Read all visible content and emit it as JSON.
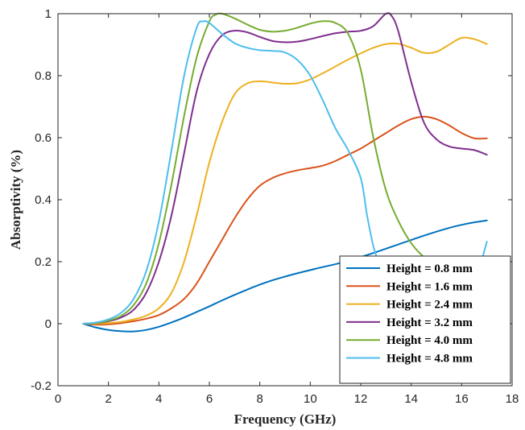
{
  "chart_data": {
    "type": "line",
    "title": "",
    "xlabel": "Frequency (GHz)",
    "ylabel": "Absorptivity (%)",
    "xlim": [
      0,
      18
    ],
    "ylim": [
      -0.2,
      1
    ],
    "xticks": [
      0,
      2,
      4,
      6,
      8,
      10,
      12,
      14,
      16,
      18
    ],
    "yticks": [
      -0.2,
      0,
      0.2,
      0.4,
      0.6,
      0.8,
      1
    ],
    "ytick_labels": [
      "-0.2",
      "0",
      "0.2",
      "0.4",
      "0.6",
      "0.8",
      "1"
    ],
    "grid": false,
    "legend_position": "bottom-right",
    "series": [
      {
        "name": "Height = 0.8 mm",
        "color": "#0072BD",
        "points": [
          [
            1,
            0
          ],
          [
            1.5,
            -0.012
          ],
          [
            2,
            -0.02
          ],
          [
            2.5,
            -0.024
          ],
          [
            3,
            -0.025
          ],
          [
            3.5,
            -0.02
          ],
          [
            4,
            -0.01
          ],
          [
            4.5,
            0.004
          ],
          [
            5,
            0.02
          ],
          [
            5.5,
            0.038
          ],
          [
            6,
            0.056
          ],
          [
            6.5,
            0.075
          ],
          [
            7,
            0.093
          ],
          [
            7.5,
            0.11
          ],
          [
            8,
            0.126
          ],
          [
            8.5,
            0.14
          ],
          [
            9,
            0.152
          ],
          [
            9.5,
            0.163
          ],
          [
            10,
            0.173
          ],
          [
            10.5,
            0.183
          ],
          [
            11,
            0.192
          ],
          [
            11.5,
            0.203
          ],
          [
            12,
            0.215
          ],
          [
            12.5,
            0.228
          ],
          [
            13,
            0.242
          ],
          [
            13.5,
            0.256
          ],
          [
            14,
            0.27
          ],
          [
            14.5,
            0.284
          ],
          [
            15,
            0.297
          ],
          [
            15.5,
            0.309
          ],
          [
            16,
            0.319
          ],
          [
            16.5,
            0.327
          ],
          [
            17,
            0.333
          ]
        ]
      },
      {
        "name": "Height = 1.6 mm",
        "color": "#D95319",
        "points": [
          [
            1,
            0
          ],
          [
            1.5,
            -0.003
          ],
          [
            2,
            -0.002
          ],
          [
            2.5,
            0.002
          ],
          [
            3,
            0.008
          ],
          [
            3.5,
            0.016
          ],
          [
            4,
            0.028
          ],
          [
            4.5,
            0.05
          ],
          [
            5,
            0.08
          ],
          [
            5.5,
            0.13
          ],
          [
            6,
            0.2
          ],
          [
            6.5,
            0.27
          ],
          [
            7,
            0.34
          ],
          [
            7.5,
            0.4
          ],
          [
            8,
            0.445
          ],
          [
            8.5,
            0.47
          ],
          [
            9,
            0.485
          ],
          [
            9.5,
            0.495
          ],
          [
            10,
            0.502
          ],
          [
            10.5,
            0.51
          ],
          [
            11,
            0.525
          ],
          [
            11.5,
            0.545
          ],
          [
            12,
            0.565
          ],
          [
            12.5,
            0.59
          ],
          [
            13,
            0.615
          ],
          [
            13.5,
            0.64
          ],
          [
            14,
            0.66
          ],
          [
            14.5,
            0.668
          ],
          [
            15,
            0.66
          ],
          [
            15.5,
            0.64
          ],
          [
            16,
            0.615
          ],
          [
            16.5,
            0.598
          ],
          [
            17,
            0.598
          ]
        ]
      },
      {
        "name": "Height = 2.4 mm",
        "color": "#EDB120",
        "points": [
          [
            1,
            0
          ],
          [
            1.5,
            0
          ],
          [
            2,
            0.002
          ],
          [
            2.5,
            0.006
          ],
          [
            3,
            0.014
          ],
          [
            3.5,
            0.026
          ],
          [
            4,
            0.05
          ],
          [
            4.5,
            0.1
          ],
          [
            5,
            0.2
          ],
          [
            5.5,
            0.35
          ],
          [
            6,
            0.52
          ],
          [
            6.5,
            0.65
          ],
          [
            7,
            0.74
          ],
          [
            7.5,
            0.775
          ],
          [
            8,
            0.782
          ],
          [
            8.5,
            0.778
          ],
          [
            9,
            0.774
          ],
          [
            9.5,
            0.776
          ],
          [
            10,
            0.788
          ],
          [
            10.5,
            0.808
          ],
          [
            11,
            0.83
          ],
          [
            11.5,
            0.852
          ],
          [
            12,
            0.872
          ],
          [
            12.5,
            0.89
          ],
          [
            13,
            0.902
          ],
          [
            13.5,
            0.903
          ],
          [
            14,
            0.89
          ],
          [
            14.5,
            0.874
          ],
          [
            15,
            0.877
          ],
          [
            15.5,
            0.9
          ],
          [
            16,
            0.922
          ],
          [
            16.5,
            0.918
          ],
          [
            17,
            0.902
          ]
        ]
      },
      {
        "name": "Height = 3.2 mm",
        "color": "#7E2F8E",
        "points": [
          [
            1,
            0
          ],
          [
            1.5,
            0.002
          ],
          [
            2,
            0.008
          ],
          [
            2.5,
            0.02
          ],
          [
            3,
            0.045
          ],
          [
            3.5,
            0.1
          ],
          [
            4,
            0.2
          ],
          [
            4.5,
            0.35
          ],
          [
            5,
            0.55
          ],
          [
            5.5,
            0.75
          ],
          [
            6,
            0.87
          ],
          [
            6.5,
            0.93
          ],
          [
            7,
            0.945
          ],
          [
            7.5,
            0.94
          ],
          [
            8,
            0.925
          ],
          [
            8.5,
            0.912
          ],
          [
            9,
            0.908
          ],
          [
            9.5,
            0.91
          ],
          [
            10,
            0.918
          ],
          [
            10.5,
            0.928
          ],
          [
            11,
            0.937
          ],
          [
            11.5,
            0.942
          ],
          [
            12,
            0.945
          ],
          [
            12.5,
            0.96
          ],
          [
            13,
            1.0
          ],
          [
            13.25,
            0.99
          ],
          [
            13.5,
            0.94
          ],
          [
            14,
            0.78
          ],
          [
            14.5,
            0.65
          ],
          [
            15,
            0.595
          ],
          [
            15.5,
            0.572
          ],
          [
            16,
            0.565
          ],
          [
            16.5,
            0.56
          ],
          [
            17,
            0.545
          ]
        ]
      },
      {
        "name": "Height = 4.0 mm",
        "color": "#77AC30",
        "points": [
          [
            1,
            0
          ],
          [
            1.5,
            0.002
          ],
          [
            2,
            0.01
          ],
          [
            2.5,
            0.025
          ],
          [
            3,
            0.06
          ],
          [
            3.5,
            0.13
          ],
          [
            4,
            0.26
          ],
          [
            4.5,
            0.45
          ],
          [
            5,
            0.67
          ],
          [
            5.5,
            0.86
          ],
          [
            6,
            0.975
          ],
          [
            6.25,
            0.997
          ],
          [
            6.5,
            1.0
          ],
          [
            7,
            0.985
          ],
          [
            7.5,
            0.965
          ],
          [
            8,
            0.948
          ],
          [
            8.5,
            0.942
          ],
          [
            9,
            0.945
          ],
          [
            9.5,
            0.955
          ],
          [
            10,
            0.968
          ],
          [
            10.5,
            0.976
          ],
          [
            11,
            0.97
          ],
          [
            11.5,
            0.935
          ],
          [
            12,
            0.82
          ],
          [
            12.5,
            0.6
          ],
          [
            13,
            0.43
          ],
          [
            13.5,
            0.33
          ],
          [
            14,
            0.26
          ],
          [
            14.5,
            0.215
          ],
          [
            14.8,
            0.2
          ]
        ]
      },
      {
        "name": "Height = 4.8 mm",
        "color": "#4DBEEE",
        "points": [
          [
            1,
            0
          ],
          [
            1.5,
            0.004
          ],
          [
            2,
            0.014
          ],
          [
            2.5,
            0.035
          ],
          [
            3,
            0.08
          ],
          [
            3.5,
            0.17
          ],
          [
            4,
            0.33
          ],
          [
            4.5,
            0.56
          ],
          [
            5,
            0.8
          ],
          [
            5.5,
            0.955
          ],
          [
            5.75,
            0.975
          ],
          [
            6,
            0.97
          ],
          [
            6.5,
            0.935
          ],
          [
            7,
            0.905
          ],
          [
            7.5,
            0.89
          ],
          [
            8,
            0.882
          ],
          [
            8.5,
            0.88
          ],
          [
            9,
            0.875
          ],
          [
            9.5,
            0.85
          ],
          [
            10,
            0.8
          ],
          [
            10.5,
            0.72
          ],
          [
            11,
            0.63
          ],
          [
            11.5,
            0.56
          ],
          [
            12,
            0.47
          ],
          [
            12.25,
            0.35
          ],
          [
            12.5,
            0.25
          ],
          [
            12.7,
            0.2
          ]
        ]
      }
    ],
    "extra_segments": [
      {
        "series_index": 5,
        "color": "#4DBEEE",
        "points": [
          [
            16.8,
            0.205
          ],
          [
            17,
            0.265
          ]
        ]
      }
    ]
  }
}
